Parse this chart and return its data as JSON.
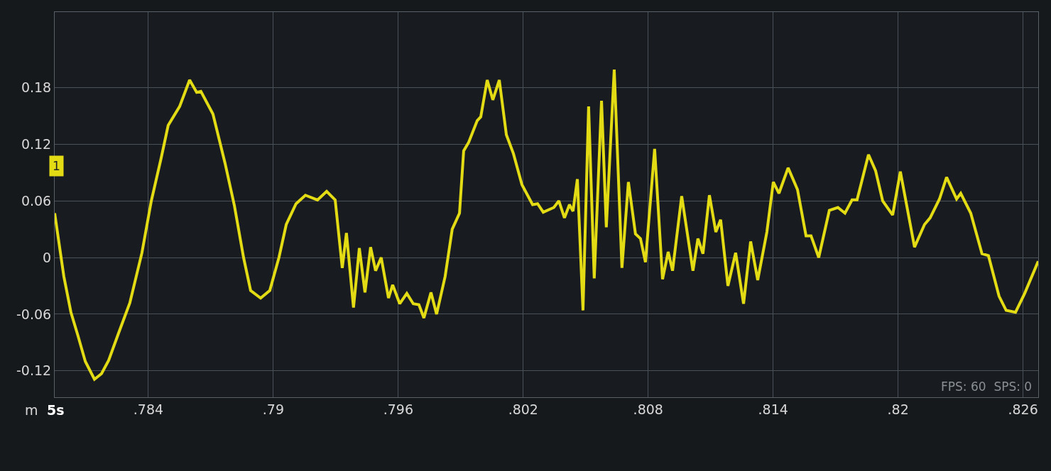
{
  "chart_data": {
    "type": "line",
    "x": [
      0.7795,
      0.77994,
      0.78028,
      0.78062,
      0.78097,
      0.78141,
      0.78175,
      0.78209,
      0.78257,
      0.78311,
      0.78369,
      0.78414,
      0.78461,
      0.78495,
      0.7855,
      0.78598,
      0.78632,
      0.78652,
      0.7871,
      0.78768,
      0.78813,
      0.78857,
      0.78891,
      0.78939,
      0.78983,
      0.79027,
      0.79062,
      0.79109,
      0.79154,
      0.79212,
      0.79256,
      0.79297,
      0.79331,
      0.79351,
      0.79385,
      0.79413,
      0.7944,
      0.79467,
      0.79491,
      0.79518,
      0.79553,
      0.79573,
      0.79607,
      0.79641,
      0.79672,
      0.79699,
      0.79723,
      0.79757,
      0.79784,
      0.79825,
      0.79859,
      0.79894,
      0.79914,
      0.79938,
      0.79979,
      0.79996,
      0.80027,
      0.80054,
      0.80085,
      0.80119,
      0.80153,
      0.80194,
      0.80245,
      0.80269,
      0.80296,
      0.80347,
      0.80371,
      0.80398,
      0.80422,
      0.80439,
      0.8046,
      0.80487,
      0.80514,
      0.80541,
      0.80576,
      0.80599,
      0.80637,
      0.80674,
      0.80705,
      0.80739,
      0.80763,
      0.80787,
      0.80831,
      0.80869,
      0.80896,
      0.80917,
      0.80961,
      0.81015,
      0.81039,
      0.81063,
      0.81094,
      0.81125,
      0.81148,
      0.81183,
      0.8122,
      0.81258,
      0.81292,
      0.81326,
      0.8137,
      0.81401,
      0.81428,
      0.81472,
      0.81517,
      0.81558,
      0.81582,
      0.81619,
      0.8167,
      0.81711,
      0.81745,
      0.81779,
      0.81803,
      0.81858,
      0.81892,
      0.81926,
      0.81974,
      0.82011,
      0.82079,
      0.82127,
      0.82154,
      0.82199,
      0.82233,
      0.82281,
      0.82301,
      0.82349,
      0.82403,
      0.82434,
      0.82485,
      0.82519,
      0.82564,
      0.82608,
      0.82673
    ],
    "series": [
      {
        "color": "#e3dc14",
        "values": [
          0.047,
          -0.02,
          -0.058,
          -0.083,
          -0.11,
          -0.129,
          -0.123,
          -0.109,
          -0.08,
          -0.048,
          0.005,
          0.06,
          0.105,
          0.14,
          0.16,
          0.188,
          0.175,
          0.176,
          0.152,
          0.1,
          0.055,
          0,
          -0.035,
          -0.043,
          -0.035,
          0,
          0.035,
          0.057,
          0.066,
          0.061,
          0.07,
          0.061,
          -0.011,
          0.026,
          -0.053,
          0.01,
          -0.037,
          0.011,
          -0.014,
          0,
          -0.043,
          -0.029,
          -0.049,
          -0.038,
          -0.049,
          -0.05,
          -0.064,
          -0.037,
          -0.06,
          -0.02,
          0.03,
          0.047,
          0.113,
          0.122,
          0.145,
          0.149,
          0.188,
          0.167,
          0.188,
          0.13,
          0.11,
          0.077,
          0.056,
          0.057,
          0.048,
          0.053,
          0.06,
          0.042,
          0.056,
          0.049,
          0.083,
          -0.056,
          0.16,
          -0.022,
          0.166,
          0.032,
          0.199,
          -0.011,
          0.08,
          0.025,
          0.02,
          -0.005,
          0.115,
          -0.023,
          0.006,
          -0.014,
          0.065,
          -0.014,
          0.02,
          0.004,
          0.066,
          0.027,
          0.04,
          -0.03,
          0.005,
          -0.049,
          0.017,
          -0.024,
          0.027,
          0.08,
          0.068,
          0.095,
          0.072,
          0.023,
          0.023,
          0,
          0.05,
          0.053,
          0.047,
          0.061,
          0.061,
          0.109,
          0.092,
          0.06,
          0.045,
          0.091,
          0.011,
          0.035,
          0.042,
          0.062,
          0.085,
          0.062,
          0.068,
          0.047,
          0.004,
          0.002,
          -0.041,
          -0.056,
          -0.058,
          -0.038,
          -0.004
        ]
      }
    ],
    "xlim": [
      0.7795,
      0.82673
    ],
    "ylim": [
      -0.148,
      0.26
    ],
    "xticks": [
      {
        "value": 0.784,
        "label": ".784"
      },
      {
        "value": 0.79,
        "label": ".79"
      },
      {
        "value": 0.796,
        "label": ".796"
      },
      {
        "value": 0.802,
        "label": ".802"
      },
      {
        "value": 0.808,
        "label": ".808"
      },
      {
        "value": 0.814,
        "label": ".814"
      },
      {
        "value": 0.82,
        "label": ".82"
      },
      {
        "value": 0.826,
        "label": ".826"
      }
    ],
    "yticks": [
      -0.12,
      -0.06,
      0,
      0.06,
      0.12,
      0.18
    ],
    "grid": true,
    "marker": "none",
    "line_style": "solid",
    "annotations": [
      "1",
      "FPS: 60  SPS: 0",
      "m",
      "5s"
    ]
  }
}
